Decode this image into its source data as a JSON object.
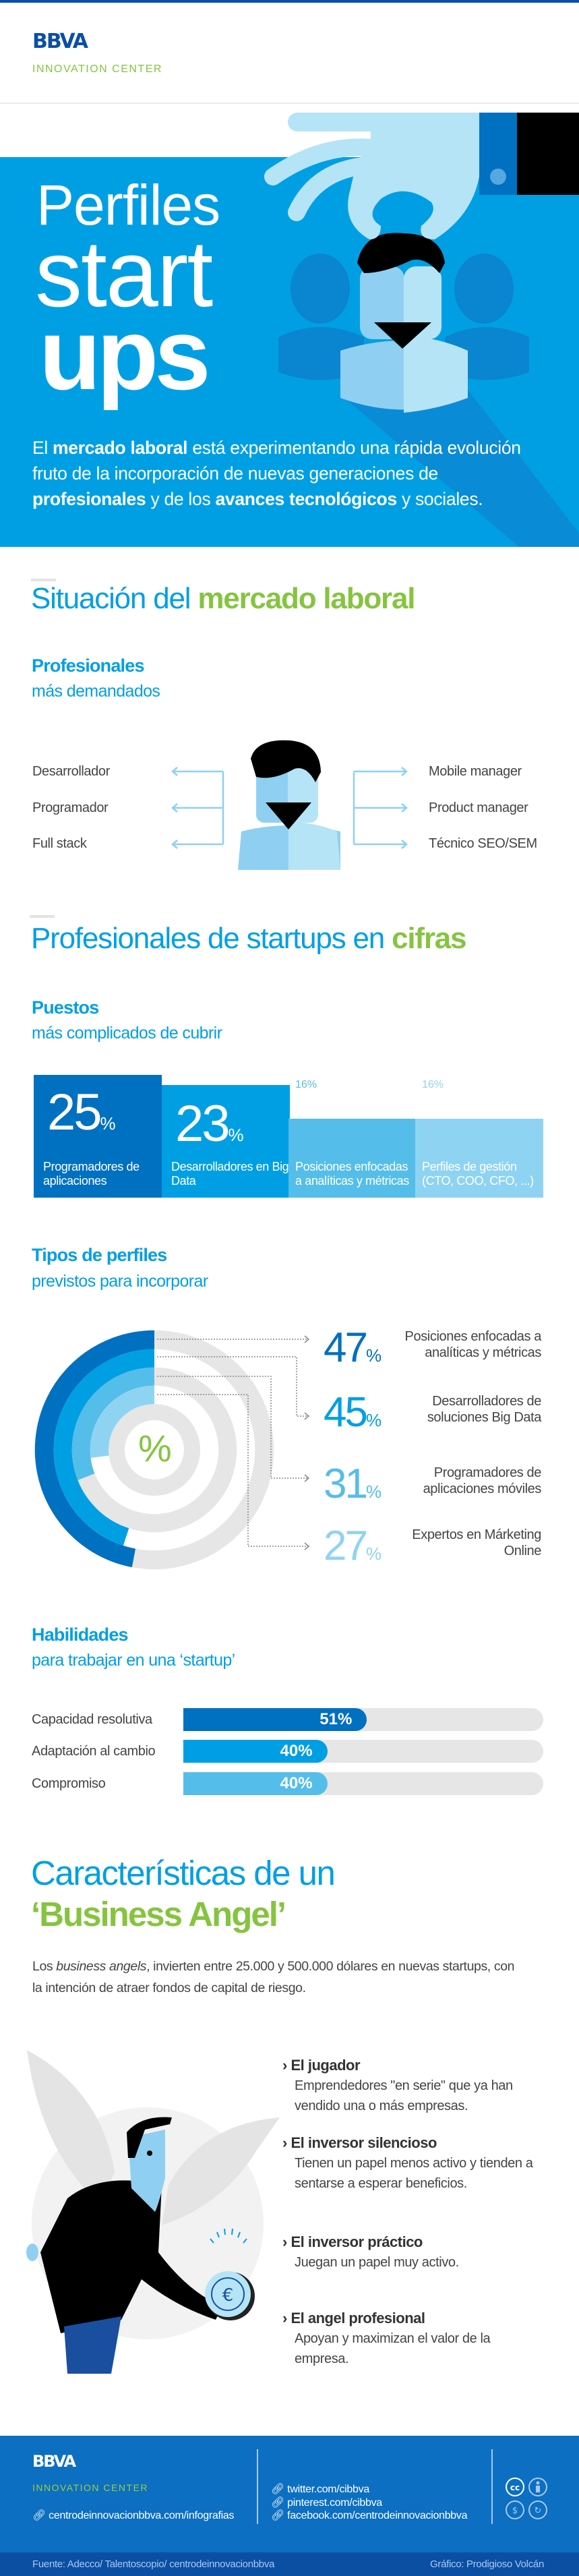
{
  "header": {
    "logo": "BBVA",
    "subtitle": "INNOVATION CENTER"
  },
  "hero": {
    "title_line1": "Perfiles",
    "title_line2": "start",
    "title_line3": "ups",
    "paragraph": [
      {
        "text": "El ",
        "bold": false
      },
      {
        "text": "mercado laboral",
        "bold": true
      },
      {
        "text": " está experimentando una rápida evolución fruto de la incorporación de nuevas generaciones de ",
        "bold": false
      },
      {
        "text": "profesionales",
        "bold": true
      },
      {
        "text": " y de los ",
        "bold": false
      },
      {
        "text": "avances tecnológicos",
        "bold": true
      },
      {
        "text": " y sociales.",
        "bold": false
      }
    ]
  },
  "mercado": {
    "title_light": "Situación del ",
    "title_bold": "mercado laboral",
    "subtitle_bold": "Profesionales",
    "subtitle_light": "más demandados",
    "left_items": [
      "Desarrollador",
      "Programador",
      "Full stack"
    ],
    "right_items": [
      "Mobile manager",
      "Product manager",
      "Técnico SEO/SEM"
    ]
  },
  "cifras": {
    "title_light": "Profesionales de startups en ",
    "title_bold": "cifras",
    "puestos": {
      "subtitle_bold": "Puestos",
      "subtitle_light": "más complicados de cubrir",
      "items": [
        {
          "value": 25,
          "unit": "%",
          "label": "Programadores de aplicaciones",
          "color": "#0070c0"
        },
        {
          "value": 23,
          "unit": "%",
          "label": "Desarrolladores en Big Data",
          "color": "#009fe3"
        },
        {
          "value": 16,
          "unit": "%",
          "label": "Posiciones enfocadas a analíticas y métricas",
          "color": "#55bde9"
        },
        {
          "value": 16,
          "unit": "%",
          "label": "Perfiles de gestión (CTO, COO, CFO, ...)",
          "color": "#8fd3f3"
        }
      ]
    },
    "tipos": {
      "subtitle_bold": "Tipos de perfiles",
      "subtitle_light": "previstos para incorporar",
      "center_symbol": "%",
      "items": [
        {
          "value": 47,
          "unit": "%",
          "label": "Posiciones enfocadas a analíticas y métricas",
          "color": "#0070c0"
        },
        {
          "value": 45,
          "unit": "%",
          "label": "Desarrolladores de soluciones Big Data",
          "color": "#009fe3"
        },
        {
          "value": 31,
          "unit": "%",
          "label": "Programadores de aplicaciones móviles",
          "color": "#55bde9"
        },
        {
          "value": 27,
          "unit": "%",
          "label": "Expertos en Márketing Online",
          "color": "#8fd3f3"
        }
      ]
    },
    "habilidades": {
      "subtitle_bold": "Habilidades",
      "subtitle_light": "para trabajar en una ‘startup’",
      "items": [
        {
          "label": "Capacidad resolutiva",
          "value": 51,
          "display": "51%",
          "color": "#0070c0"
        },
        {
          "label": "Adaptación al cambio",
          "value": 40,
          "display": "40%",
          "color": "#009fe3"
        },
        {
          "label": "Compromiso",
          "value": 40,
          "display": "40%",
          "color": "#55bde9"
        }
      ]
    }
  },
  "angel": {
    "title_line1": "Características de un",
    "title_line2": "‘Business Angel’",
    "intro_pre": "Los ",
    "intro_italic": "business angels",
    "intro_post": ", invierten entre 25.000 y 500.000 dólares en nuevas startups, con la intención de  atraer fondos de capital de riesgo.",
    "types": [
      {
        "title": "El jugador",
        "desc": "Emprendedores \"en serie\" que ya han vendido una o más empresas."
      },
      {
        "title": "El inversor silencioso",
        "desc": " Tienen un papel menos activo y tienden a sentarse a esperar beneficios."
      },
      {
        "title": "El inversor práctico",
        "desc": "Juegan un papel muy activo."
      },
      {
        "title": "El angel profesional",
        "desc": "Apoyan y maximizan el valor de la empresa."
      }
    ]
  },
  "footer": {
    "logo": "BBVA",
    "subtitle": "INNOVATION CENTER",
    "site_link": "centrodeinnovacionbbva.com/infografias",
    "social_links": [
      "twitter.com/cibbva",
      "pinterest.com/cibbva",
      "facebook.com/centrodeinnovacionbbva"
    ],
    "license_icons": [
      "cc-icon",
      "by-icon",
      "nc-icon",
      "sa-icon"
    ],
    "source": "Fuente: Adecco/ Talentoscopio/ centrodeinnovacionbbva",
    "credit": "Gráfico: Prodigioso Volcán"
  },
  "colors": {
    "brand_blue": "#0b4fa3",
    "cyan": "#009fe3",
    "green": "#86c440",
    "dark_blue": "#0070c0"
  }
}
